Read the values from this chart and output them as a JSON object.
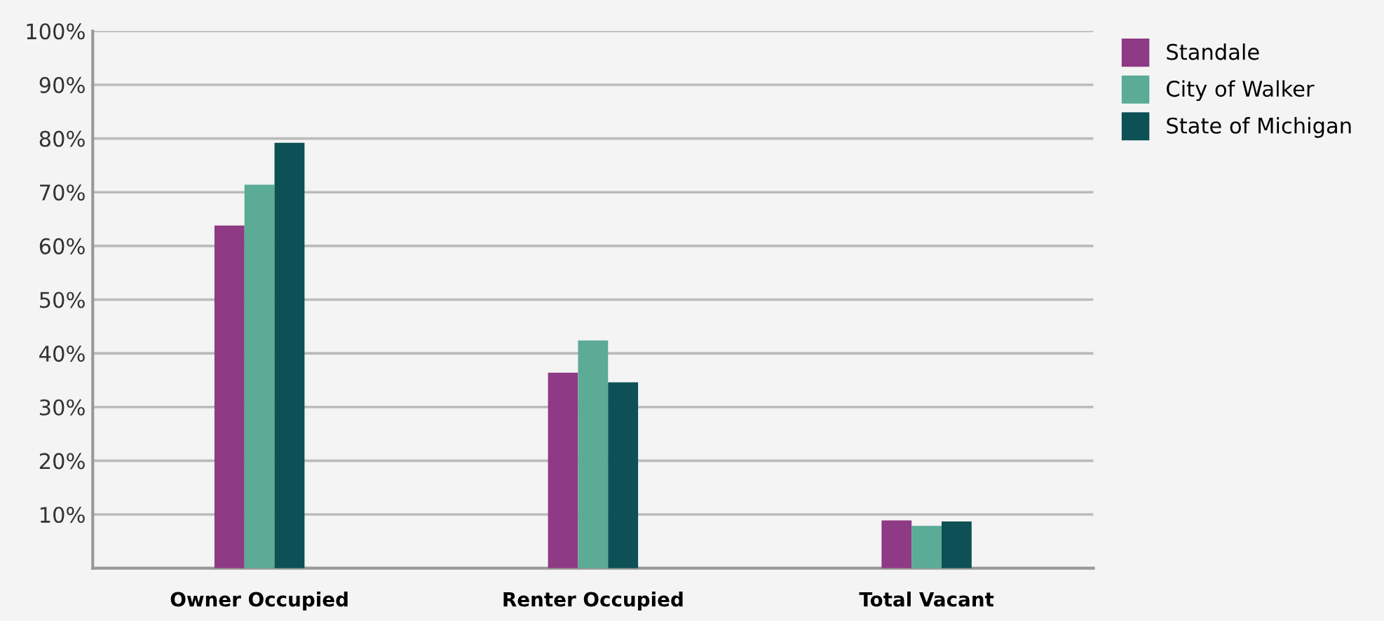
{
  "chart_data": {
    "type": "bar",
    "categories": [
      "Owner Occupied",
      "Renter Occupied",
      "Total Vacant"
    ],
    "series": [
      {
        "name": "Standale",
        "color": "#8e3a84",
        "values": [
          63.8,
          36.4,
          8.9
        ]
      },
      {
        "name": "City of Walker",
        "color": "#5bab96",
        "values": [
          71.4,
          42.4,
          7.9
        ]
      },
      {
        "name": "State of Michigan",
        "color": "#0d5056",
        "values": [
          79.2,
          34.6,
          8.7
        ]
      }
    ],
    "ylim": [
      0,
      100
    ],
    "yticks": [
      {
        "value": 10,
        "label": "10%"
      },
      {
        "value": 20,
        "label": "20%"
      },
      {
        "value": 30,
        "label": "30%"
      },
      {
        "value": 40,
        "label": "40%"
      },
      {
        "value": 50,
        "label": "50%"
      },
      {
        "value": 60,
        "label": "60%"
      },
      {
        "value": 70,
        "label": "70%"
      },
      {
        "value": 80,
        "label": "80%"
      },
      {
        "value": 90,
        "label": "90%"
      },
      {
        "value": 100,
        "label": "100%"
      }
    ],
    "grid": "y",
    "legend": "top right"
  }
}
